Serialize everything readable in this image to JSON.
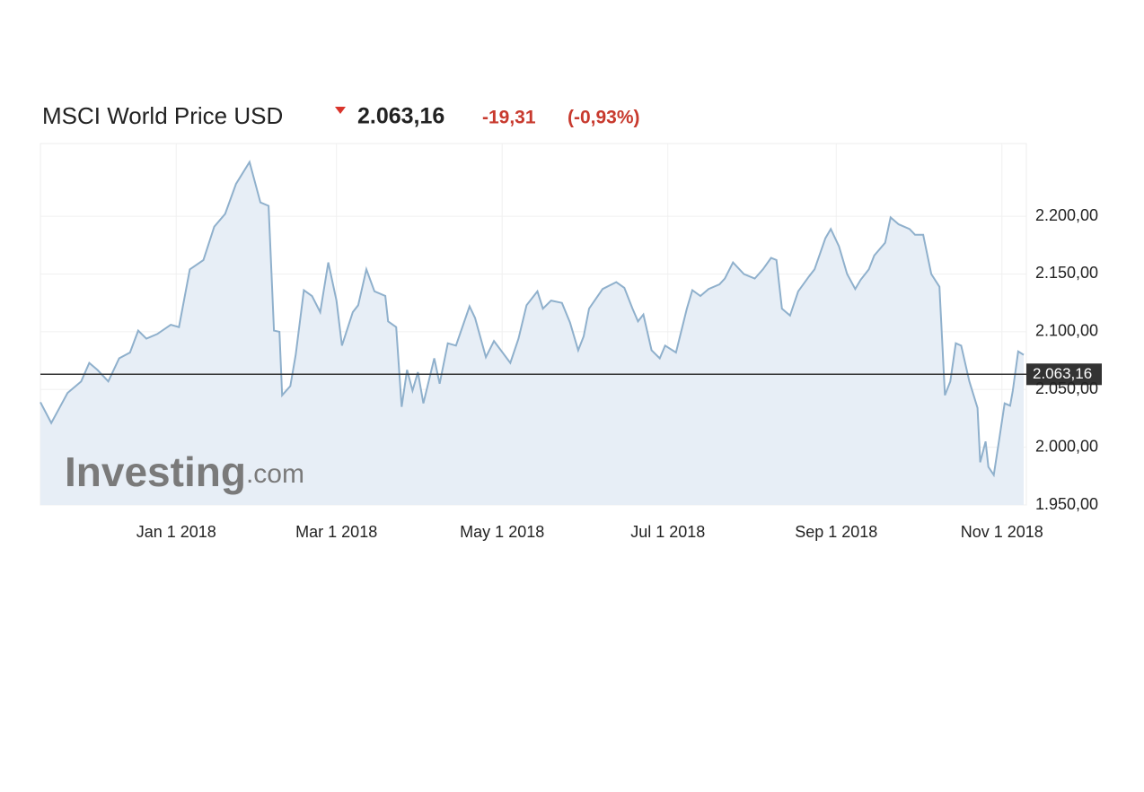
{
  "chart_data": {
    "type": "line",
    "title": "MSCI World Price USD",
    "quote": {
      "price": "2.063,16",
      "change": "-19,31",
      "change_percent": "(-0,93%)"
    },
    "watermark": {
      "brand": "Investing",
      "suffix": ".com"
    },
    "color": "#8fb0cc",
    "fill_color": "#e7eef6",
    "x": [
      "2017-11-12",
      "2017-11-16",
      "2017-11-19",
      "2017-11-22",
      "2017-11-27",
      "2017-11-30",
      "2017-12-03",
      "2017-12-07",
      "2017-12-11",
      "2017-12-15",
      "2017-12-18",
      "2017-12-21",
      "2017-12-25",
      "2017-12-30",
      "2018-01-02",
      "2018-01-06",
      "2018-01-11",
      "2018-01-15",
      "2018-01-19",
      "2018-01-23",
      "2018-01-28",
      "2018-02-01",
      "2018-02-04",
      "2018-02-06",
      "2018-02-08",
      "2018-02-09",
      "2018-02-12",
      "2018-02-14",
      "2018-02-17",
      "2018-02-20",
      "2018-02-23",
      "2018-02-26",
      "2018-03-01",
      "2018-03-03",
      "2018-03-07",
      "2018-03-09",
      "2018-03-12",
      "2018-03-15",
      "2018-03-19",
      "2018-03-20",
      "2018-03-23",
      "2018-03-25",
      "2018-03-27",
      "2018-03-29",
      "2018-03-31",
      "2018-04-02",
      "2018-04-06",
      "2018-04-08",
      "2018-04-11",
      "2018-04-14",
      "2018-04-19",
      "2018-04-21",
      "2018-04-25",
      "2018-04-28",
      "2018-05-04",
      "2018-05-07",
      "2018-05-10",
      "2018-05-14",
      "2018-05-16",
      "2018-05-19",
      "2018-05-23",
      "2018-05-26",
      "2018-05-29",
      "2018-05-31",
      "2018-06-02",
      "2018-06-07",
      "2018-06-12",
      "2018-06-15",
      "2018-06-18",
      "2018-06-20",
      "2018-06-22",
      "2018-06-25",
      "2018-06-28",
      "2018-06-30",
      "2018-07-04",
      "2018-07-08",
      "2018-07-10",
      "2018-07-13",
      "2018-07-16",
      "2018-07-20",
      "2018-07-22",
      "2018-07-25",
      "2018-07-29",
      "2018-08-02",
      "2018-08-05",
      "2018-08-08",
      "2018-08-10",
      "2018-08-12",
      "2018-08-15",
      "2018-08-18",
      "2018-08-22",
      "2018-08-24",
      "2018-08-28",
      "2018-08-30",
      "2018-09-02",
      "2018-09-05",
      "2018-09-08",
      "2018-09-10",
      "2018-09-13",
      "2018-09-15",
      "2018-09-19",
      "2018-09-21",
      "2018-09-24",
      "2018-09-28",
      "2018-09-30",
      "2018-10-03",
      "2018-10-06",
      "2018-10-09",
      "2018-10-11",
      "2018-10-13",
      "2018-10-15",
      "2018-10-17",
      "2018-10-20",
      "2018-10-23",
      "2018-10-24",
      "2018-10-26",
      "2018-10-27",
      "2018-10-29",
      "2018-10-31",
      "2018-11-02",
      "2018-11-04",
      "2018-11-05",
      "2018-11-07",
      "2018-11-09"
    ],
    "values": [
      2039,
      2021,
      2034,
      2047,
      2057,
      2073,
      2067,
      2057,
      2077,
      2082,
      2101,
      2094,
      2098,
      2106,
      2104,
      2154,
      2162,
      2191,
      2202,
      2228,
      2247,
      2212,
      2209,
      2101,
      2100,
      2045,
      2053,
      2080,
      2136,
      2131,
      2117,
      2160,
      2127,
      2088,
      2117,
      2123,
      2154,
      2135,
      2131,
      2109,
      2104,
      2035,
      2067,
      2049,
      2065,
      2038,
      2077,
      2055,
      2090,
      2088,
      2122,
      2112,
      2078,
      2092,
      2073,
      2094,
      2123,
      2135,
      2120,
      2127,
      2125,
      2108,
      2084,
      2096,
      2120,
      2137,
      2143,
      2138,
      2120,
      2109,
      2115,
      2084,
      2077,
      2088,
      2082,
      2120,
      2136,
      2131,
      2137,
      2141,
      2146,
      2160,
      2150,
      2146,
      2154,
      2164,
      2162,
      2120,
      2114,
      2135,
      2148,
      2154,
      2181,
      2189,
      2174,
      2150,
      2137,
      2145,
      2154,
      2166,
      2177,
      2199,
      2193,
      2189,
      2184,
      2184,
      2150,
      2139,
      2045,
      2057,
      2090,
      2088,
      2057,
      2034,
      1987,
      2005,
      1983,
      1976,
      2007,
      2038,
      2036,
      2049,
      2083,
      2080
    ],
    "xlim": [
      "2017-11-12",
      "2018-11-10"
    ],
    "xticks": [
      {
        "value": "2018-01-01",
        "label": "Jan 1 2018"
      },
      {
        "value": "2018-03-01",
        "label": "Mar 1 2018"
      },
      {
        "value": "2018-05-01",
        "label": "May 1 2018"
      },
      {
        "value": "2018-07-01",
        "label": "Jul 1 2018"
      },
      {
        "value": "2018-09-01",
        "label": "Sep 1 2018"
      },
      {
        "value": "2018-11-01",
        "label": "Nov 1 2018"
      }
    ],
    "ylim": [
      1950,
      2263
    ],
    "yticks": [
      {
        "value": 1950,
        "label": "1.950,00"
      },
      {
        "value": 2000,
        "label": "2.000,00"
      },
      {
        "value": 2050,
        "label": "2.050,00"
      },
      {
        "value": 2100,
        "label": "2.100,00"
      },
      {
        "value": 2150,
        "label": "2.150,00"
      },
      {
        "value": 2200,
        "label": "2.200,00"
      }
    ],
    "reference_line": {
      "value": 2063.16,
      "label": "2.063,16"
    },
    "grid": true
  }
}
